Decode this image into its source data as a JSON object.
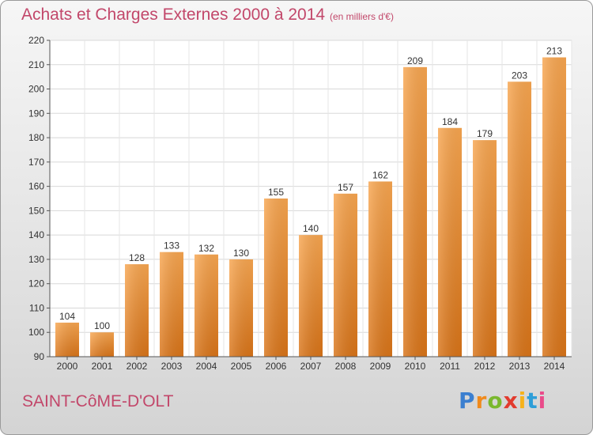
{
  "chart_data": {
    "type": "bar",
    "title": "Achats et Charges Externes 2000 à 2014",
    "unit_label": "(en milliers d'€)",
    "categories": [
      "2000",
      "2001",
      "2002",
      "2003",
      "2004",
      "2005",
      "2006",
      "2007",
      "2008",
      "2009",
      "2010",
      "2011",
      "2012",
      "2013",
      "2014"
    ],
    "values": [
      104,
      100,
      128,
      133,
      132,
      130,
      155,
      140,
      157,
      162,
      209,
      184,
      179,
      203,
      213
    ],
    "ylim": [
      90,
      220
    ],
    "yticks": [
      90,
      100,
      110,
      120,
      130,
      140,
      150,
      160,
      170,
      180,
      190,
      200,
      210,
      220
    ],
    "grid": true,
    "bar_color": "#f0913a",
    "xlabel": "",
    "ylabel": ""
  },
  "location_name": "SAINT-CôME-D'OLT",
  "brand": {
    "letters": [
      "P",
      "r",
      "o",
      "x",
      "i",
      "t",
      "i"
    ],
    "colors": [
      "#3b7fd0",
      "#f08a1c",
      "#7ab82e",
      "#e23b2e",
      "#f6b21b",
      "#2e9ed8",
      "#e94b8a"
    ]
  }
}
